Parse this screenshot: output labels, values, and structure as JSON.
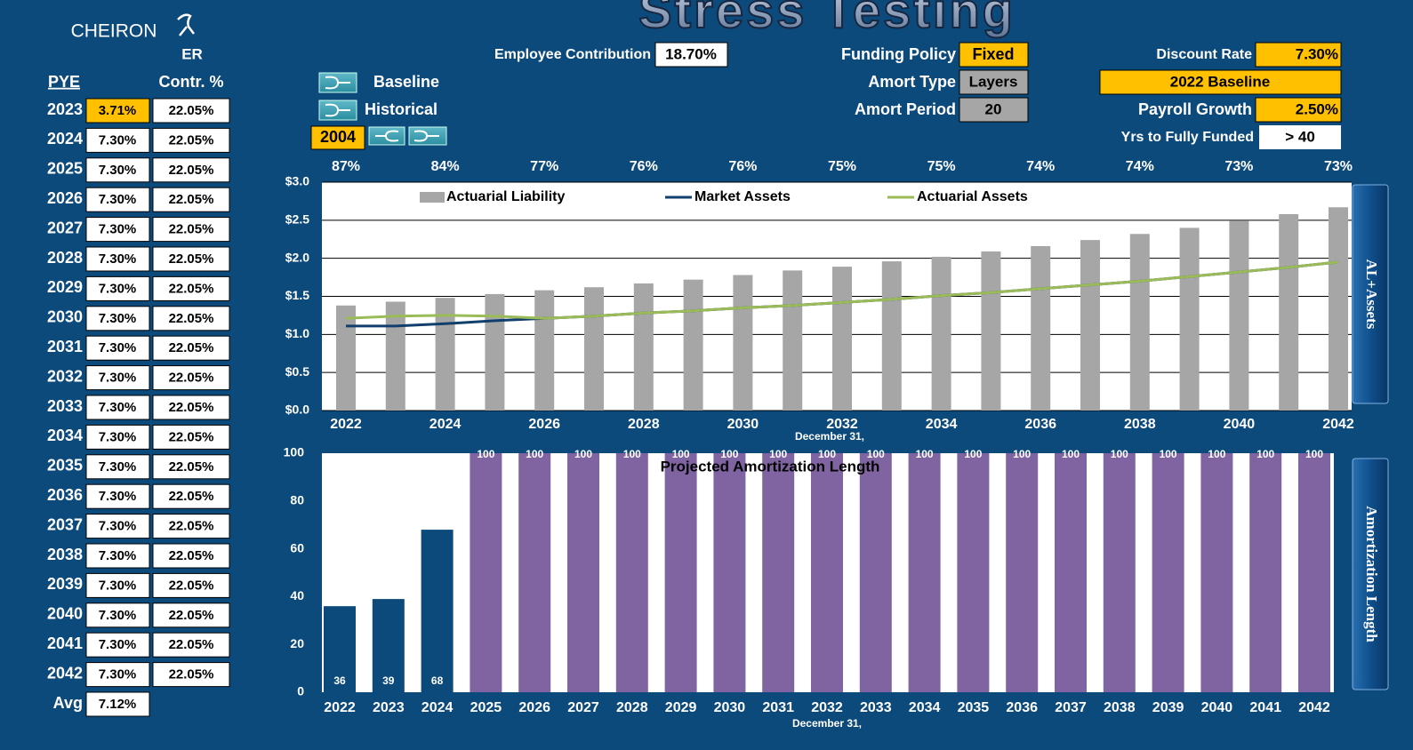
{
  "header": {
    "title": "Stress Testing",
    "logo": "CHEIRON",
    "logo_sub": "ER"
  },
  "rates_table": {
    "headers": [
      "PYE",
      "Contr. %"
    ],
    "rows": [
      {
        "year": "2023",
        "rate": "3.71%",
        "contr": "22.05%",
        "rate_fill": "#ffc000"
      },
      {
        "year": "2024",
        "rate": "7.30%",
        "contr": "22.05%"
      },
      {
        "year": "2025",
        "rate": "7.30%",
        "contr": "22.05%"
      },
      {
        "year": "2026",
        "rate": "7.30%",
        "contr": "22.05%"
      },
      {
        "year": "2027",
        "rate": "7.30%",
        "contr": "22.05%"
      },
      {
        "year": "2028",
        "rate": "7.30%",
        "contr": "22.05%"
      },
      {
        "year": "2029",
        "rate": "7.30%",
        "contr": "22.05%"
      },
      {
        "year": "2030",
        "rate": "7.30%",
        "contr": "22.05%"
      },
      {
        "year": "2031",
        "rate": "7.30%",
        "contr": "22.05%"
      },
      {
        "year": "2032",
        "rate": "7.30%",
        "contr": "22.05%"
      },
      {
        "year": "2033",
        "rate": "7.30%",
        "contr": "22.05%"
      },
      {
        "year": "2034",
        "rate": "7.30%",
        "contr": "22.05%"
      },
      {
        "year": "2035",
        "rate": "7.30%",
        "contr": "22.05%"
      },
      {
        "year": "2036",
        "rate": "7.30%",
        "contr": "22.05%"
      },
      {
        "year": "2037",
        "rate": "7.30%",
        "contr": "22.05%"
      },
      {
        "year": "2038",
        "rate": "7.30%",
        "contr": "22.05%"
      },
      {
        "year": "2039",
        "rate": "7.30%",
        "contr": "22.05%"
      },
      {
        "year": "2040",
        "rate": "7.30%",
        "contr": "22.05%"
      },
      {
        "year": "2041",
        "rate": "7.30%",
        "contr": "22.05%"
      },
      {
        "year": "2042",
        "rate": "7.30%",
        "contr": "22.05%"
      }
    ],
    "avg_label": "Avg",
    "avg": "7.12%"
  },
  "controls": {
    "employee_contribution": {
      "label": "Employee Contribution",
      "value": "18.70%"
    },
    "funding_policy": {
      "label": "Funding Policy",
      "value": "Fixed"
    },
    "amort_type": {
      "label": "Amort Type",
      "value": "Layers"
    },
    "amort_period": {
      "label": "Amort Period",
      "value": "20"
    },
    "discount_rate": {
      "label": "Discount Rate",
      "value": "7.30%"
    },
    "scenario": "2022 Baseline",
    "payroll_growth": {
      "label": "Payroll Growth",
      "value": "2.50%"
    },
    "yrs_to_fully_funded": {
      "label": "Yrs to Fully Funded",
      "value": "> 40"
    },
    "baseline_button": "Baseline",
    "historical_button": "Historical",
    "historical_year": "2004"
  },
  "chart_data": [
    {
      "type": "combo",
      "xlabel": "December 31,",
      "side_label": "AL+Assets",
      "x": [
        2022,
        2023,
        2024,
        2025,
        2026,
        2027,
        2028,
        2029,
        2030,
        2031,
        2032,
        2033,
        2034,
        2035,
        2036,
        2037,
        2038,
        2039,
        2040,
        2041,
        2042
      ],
      "xlim": [
        2022,
        2042
      ],
      "xticks": [
        2022,
        2024,
        2026,
        2028,
        2030,
        2032,
        2034,
        2036,
        2038,
        2040,
        2042
      ],
      "ylim": [
        0,
        3
      ],
      "yticks": [
        {
          "value": 0,
          "label": "$0.0"
        },
        {
          "value": 0.5,
          "label": "$0.5"
        },
        {
          "value": 1,
          "label": "$1.0"
        },
        {
          "value": 1.5,
          "label": "$1.5"
        },
        {
          "value": 2,
          "label": "$2.0"
        },
        {
          "value": 2.5,
          "label": "$2.5"
        },
        {
          "value": 3,
          "label": "$3.0"
        }
      ],
      "grid": true,
      "legend": "top",
      "annotations": [
        {
          "x": 2022,
          "text": "87%"
        },
        {
          "x": 2024,
          "text": "84%"
        },
        {
          "x": 2026,
          "text": "77%"
        },
        {
          "x": 2028,
          "text": "76%"
        },
        {
          "x": 2030,
          "text": "76%"
        },
        {
          "x": 2032,
          "text": "75%"
        },
        {
          "x": 2034,
          "text": "75%"
        },
        {
          "x": 2036,
          "text": "74%"
        },
        {
          "x": 2038,
          "text": "74%"
        },
        {
          "x": 2040,
          "text": "73%"
        },
        {
          "x": 2042,
          "text": "73%"
        }
      ],
      "series": [
        {
          "name": "Actuarial Liability",
          "kind": "bar",
          "color": "#a6a6a6",
          "values": [
            1.38,
            1.43,
            1.48,
            1.53,
            1.58,
            1.62,
            1.67,
            1.72,
            1.78,
            1.84,
            1.89,
            1.96,
            2.02,
            2.09,
            2.16,
            2.24,
            2.32,
            2.4,
            2.49,
            2.58,
            2.67
          ]
        },
        {
          "name": "Market Assets",
          "kind": "line",
          "color": "#103f6e",
          "values": [
            1.11,
            1.11,
            1.14,
            1.18,
            1.21,
            1.24,
            1.28,
            1.31,
            1.35,
            1.38,
            1.42,
            1.46,
            1.51,
            1.55,
            1.6,
            1.65,
            1.7,
            1.76,
            1.82,
            1.88,
            1.95
          ]
        },
        {
          "name": "Actuarial Assets",
          "kind": "line",
          "color": "#9bbb59",
          "values": [
            1.21,
            1.24,
            1.25,
            1.24,
            1.21,
            1.24,
            1.28,
            1.31,
            1.35,
            1.38,
            1.42,
            1.46,
            1.51,
            1.55,
            1.6,
            1.65,
            1.7,
            1.76,
            1.82,
            1.88,
            1.95
          ]
        }
      ]
    },
    {
      "type": "bar",
      "title": "Projected Amortization  Length",
      "xlabel": "December 31,",
      "side_label": "Amortization Length",
      "categories": [
        "2022",
        "2023",
        "2024",
        "2025",
        "2026",
        "2027",
        "2028",
        "2029",
        "2030",
        "2031",
        "2032",
        "2033",
        "2034",
        "2035",
        "2036",
        "2037",
        "2038",
        "2039",
        "2040",
        "2041",
        "2042"
      ],
      "values": [
        36,
        39,
        68,
        100,
        100,
        100,
        100,
        100,
        100,
        100,
        100,
        100,
        100,
        100,
        100,
        100,
        100,
        100,
        100,
        100,
        100
      ],
      "colors": [
        "#0d4a7c",
        "#0d4a7c",
        "#0d4a7c",
        "#8064a2",
        "#8064a2",
        "#8064a2",
        "#8064a2",
        "#8064a2",
        "#8064a2",
        "#8064a2",
        "#8064a2",
        "#8064a2",
        "#8064a2",
        "#8064a2",
        "#8064a2",
        "#8064a2",
        "#8064a2",
        "#8064a2",
        "#8064a2",
        "#8064a2",
        "#8064a2"
      ],
      "ylim": [
        0,
        100
      ],
      "yticks": [
        0,
        20,
        40,
        60,
        80,
        100
      ],
      "grid": false
    }
  ]
}
